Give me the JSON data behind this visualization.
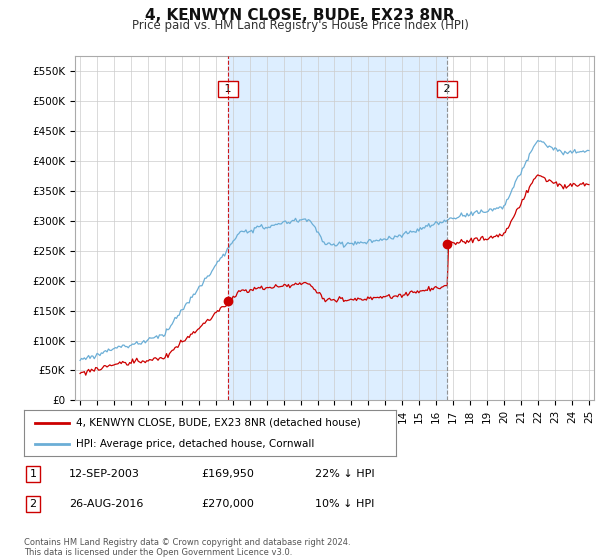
{
  "title": "4, KENWYN CLOSE, BUDE, EX23 8NR",
  "subtitle": "Price paid vs. HM Land Registry's House Price Index (HPI)",
  "ylim": [
    0,
    575000
  ],
  "yticks": [
    0,
    50000,
    100000,
    150000,
    200000,
    250000,
    300000,
    350000,
    400000,
    450000,
    500000,
    550000
  ],
  "ytick_labels": [
    "£0",
    "£50K",
    "£100K",
    "£150K",
    "£200K",
    "£250K",
    "£300K",
    "£350K",
    "£400K",
    "£450K",
    "£500K",
    "£550K"
  ],
  "hpi_color": "#6baed6",
  "price_color": "#cc0000",
  "vline1_color": "#cc0000",
  "vline2_color": "#888888",
  "shade_color": "#ddeeff",
  "background_color": "#ffffff",
  "grid_color": "#cccccc",
  "transaction1": {
    "date": "12-SEP-2003",
    "price": 169950,
    "x": 2003.72
  },
  "transaction2": {
    "date": "26-AUG-2016",
    "price": 270000,
    "x": 2016.65
  },
  "legend_label_price": "4, KENWYN CLOSE, BUDE, EX23 8NR (detached house)",
  "legend_label_hpi": "HPI: Average price, detached house, Cornwall",
  "footnote": "Contains HM Land Registry data © Crown copyright and database right 2024.\nThis data is licensed under the Open Government Licence v3.0.",
  "table_rows": [
    {
      "num": "1",
      "date": "12-SEP-2003",
      "price": "£169,950",
      "pct": "22% ↓ HPI"
    },
    {
      "num": "2",
      "date": "26-AUG-2016",
      "price": "£270,000",
      "pct": "10% ↓ HPI"
    }
  ]
}
